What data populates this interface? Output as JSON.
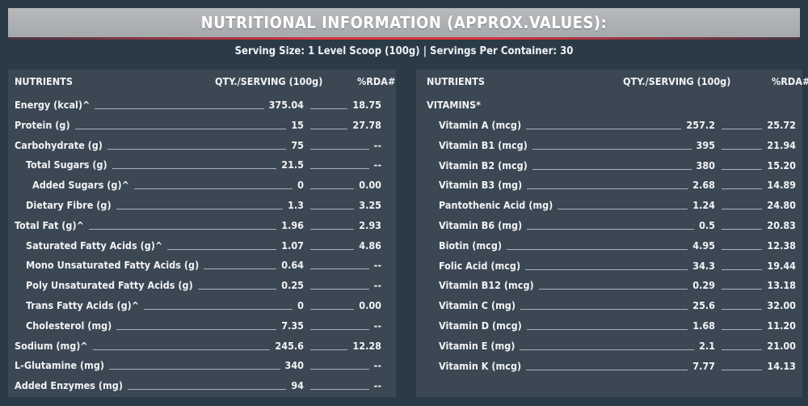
{
  "title": "NUTRITIONAL INFORMATION (APPROX.VALUES):",
  "serving": "Serving Size: 1 Level Scoop (100g) | Servings Per Container: 30",
  "left": {
    "headers": {
      "nutrients": "NUTRIENTS",
      "qty": "QTY./SERVING (100g)",
      "rda": "%RDA#"
    },
    "rows": [
      {
        "name": "Energy (kcal)^",
        "qty": "375.04",
        "rda": "18.75",
        "indent": 0
      },
      {
        "name": "Protein (g)",
        "qty": "15",
        "rda": "27.78",
        "indent": 0
      },
      {
        "name": "Carbohydrate (g)",
        "qty": "75",
        "rda": "--",
        "indent": 0
      },
      {
        "name": "Total Sugars (g)",
        "qty": "21.5",
        "rda": "--",
        "indent": 1
      },
      {
        "name": "Added Sugars (g)^",
        "qty": "0",
        "rda": "0.00",
        "indent": 2
      },
      {
        "name": "Dietary Fibre (g)",
        "qty": "1.3",
        "rda": "3.25",
        "indent": 1
      },
      {
        "name": "Total Fat (g)^",
        "qty": "1.96",
        "rda": "2.93",
        "indent": 0
      },
      {
        "name": "Saturated Fatty Acids (g)^",
        "qty": "1.07",
        "rda": "4.86",
        "indent": 1
      },
      {
        "name": "Mono Unsaturated Fatty Acids (g)",
        "qty": "0.64",
        "rda": "--",
        "indent": 1
      },
      {
        "name": "Poly Unsaturated Fatty Acids (g)",
        "qty": "0.25",
        "rda": "--",
        "indent": 1
      },
      {
        "name": "Trans Fatty Acids (g)^",
        "qty": "0",
        "rda": "0.00",
        "indent": 1
      },
      {
        "name": "Cholesterol (mg)",
        "qty": "7.35",
        "rda": "--",
        "indent": 1
      },
      {
        "name": "Sodium (mg)^",
        "qty": "245.6",
        "rda": "12.28",
        "indent": 0
      },
      {
        "name": "L-Glutamine (mg)",
        "qty": "340",
        "rda": "--",
        "indent": 0
      },
      {
        "name": "Added Enzymes (mg)",
        "qty": "94",
        "rda": "--",
        "indent": 0
      }
    ]
  },
  "right": {
    "headers": {
      "nutrients": "NUTRIENTS",
      "qty": "QTY./SERVING (100g)",
      "rda": "%RDA#"
    },
    "group": "VITAMINS*",
    "rows": [
      {
        "name": "Vitamin A (mcg)",
        "qty": "257.2",
        "rda": "25.72"
      },
      {
        "name": "Vitamin B1 (mcg)",
        "qty": "395",
        "rda": "21.94"
      },
      {
        "name": "Vitamin B2 (mcg)",
        "qty": "380",
        "rda": "15.20"
      },
      {
        "name": "Vitamin B3 (mg)",
        "qty": "2.68",
        "rda": "14.89"
      },
      {
        "name": "Pantothenic Acid (mg)",
        "qty": "1.24",
        "rda": "24.80"
      },
      {
        "name": "Vitamin B6 (mg)",
        "qty": "0.5",
        "rda": "20.83"
      },
      {
        "name": "Biotin (mcg)",
        "qty": "4.95",
        "rda": "12.38"
      },
      {
        "name": "Folic Acid (mcg)",
        "qty": "34.3",
        "rda": "19.44"
      },
      {
        "name": "Vitamin B12 (mcg)",
        "qty": "0.29",
        "rda": "13.18"
      },
      {
        "name": "Vitamin C (mg)",
        "qty": "25.6",
        "rda": "32.00"
      },
      {
        "name": "Vitamin D (mcg)",
        "qty": "1.68",
        "rda": "11.20"
      },
      {
        "name": "Vitamin E (mg)",
        "qty": "2.1",
        "rda": "21.00"
      },
      {
        "name": "Vitamin K (mcg)",
        "qty": "7.77",
        "rda": "14.13"
      }
    ]
  },
  "colors": {
    "background": "#2b3a47",
    "panel": "#3b4752",
    "title_bar": "#b0b3b6",
    "accent": "#d9343f"
  }
}
